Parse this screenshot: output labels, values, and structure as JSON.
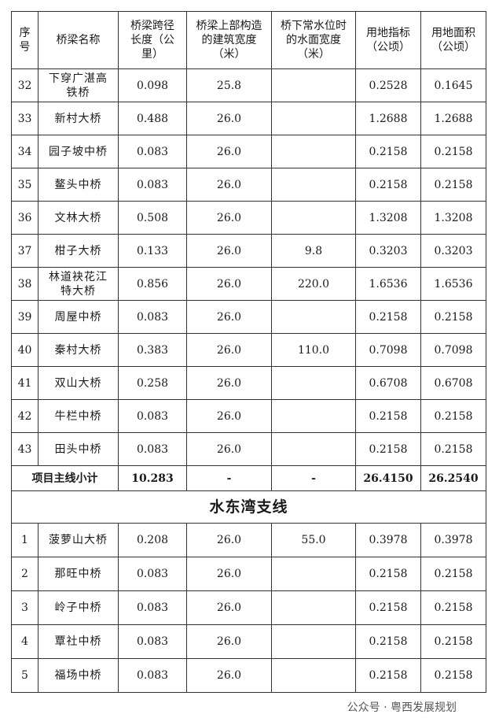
{
  "headers": [
    "序号",
    "桥梁名称",
    "桥梁跨径长度（公里）",
    "桥梁上部构造的建筑宽度（米）",
    "桥下常水位时的水面宽度（米）",
    "用地指标（公顷）",
    "用地面积（公顷）"
  ],
  "rows": [
    {
      "no": "32",
      "name": "下穿广湛高铁桥",
      "length": "0.098",
      "width": "25.8",
      "water": "",
      "index": "0.2528",
      "area": "0.1645"
    },
    {
      "no": "33",
      "name": "新村大桥",
      "length": "0.488",
      "width": "26.0",
      "water": "",
      "index": "1.2688",
      "area": "1.2688"
    },
    {
      "no": "34",
      "name": "园子坡中桥",
      "length": "0.083",
      "width": "26.0",
      "water": "",
      "index": "0.2158",
      "area": "0.2158"
    },
    {
      "no": "35",
      "name": "鳌头中桥",
      "length": "0.083",
      "width": "26.0",
      "water": "",
      "index": "0.2158",
      "area": "0.2158"
    },
    {
      "no": "36",
      "name": "文林大桥",
      "length": "0.508",
      "width": "26.0",
      "water": "",
      "index": "1.3208",
      "area": "1.3208"
    },
    {
      "no": "37",
      "name": "柑子大桥",
      "length": "0.133",
      "width": "26.0",
      "water": "9.8",
      "index": "0.3203",
      "area": "0.3203"
    },
    {
      "no": "38",
      "name": "林道袂花江特大桥",
      "length": "0.856",
      "width": "26.0",
      "water": "220.0",
      "index": "1.6536",
      "area": "1.6536"
    },
    {
      "no": "39",
      "name": "周屋中桥",
      "length": "0.083",
      "width": "26.0",
      "water": "",
      "index": "0.2158",
      "area": "0.2158"
    },
    {
      "no": "40",
      "name": "秦村大桥",
      "length": "0.383",
      "width": "26.0",
      "water": "110.0",
      "index": "0.7098",
      "area": "0.7098"
    },
    {
      "no": "41",
      "name": "双山大桥",
      "length": "0.258",
      "width": "26.0",
      "water": "",
      "index": "0.6708",
      "area": "0.6708"
    },
    {
      "no": "42",
      "name": "牛栏中桥",
      "length": "0.083",
      "width": "26.0",
      "water": "",
      "index": "0.2158",
      "area": "0.2158"
    },
    {
      "no": "43",
      "name": "田头中桥",
      "length": "0.083",
      "width": "26.0",
      "water": "",
      "index": "0.2158",
      "area": "0.2158"
    }
  ],
  "subtotal": {
    "label": "项目主线小计",
    "length": "10.283",
    "width": "-",
    "water": "-",
    "index": "26.4150",
    "area": "26.2540"
  },
  "section_title": "水东湾支线",
  "rows2": [
    {
      "no": "1",
      "name": "菠萝山大桥",
      "length": "0.208",
      "width": "26.0",
      "water": "55.0",
      "index": "0.3978",
      "area": "0.3978"
    },
    {
      "no": "2",
      "name": "那旺中桥",
      "length": "0.083",
      "width": "26.0",
      "water": "",
      "index": "0.2158",
      "area": "0.2158"
    },
    {
      "no": "3",
      "name": "岭子中桥",
      "length": "0.083",
      "width": "26.0",
      "water": "",
      "index": "0.2158",
      "area": "0.2158"
    },
    {
      "no": "4",
      "name": "覃社中桥",
      "length": "0.083",
      "width": "26.0",
      "water": "",
      "index": "0.2158",
      "area": "0.2158"
    },
    {
      "no": "5",
      "name": "福场中桥",
      "length": "0.083",
      "width": "26.0",
      "water": "",
      "index": "0.2158",
      "area": "0.2158"
    }
  ],
  "watermark": "公众号 · 粤西发展规划"
}
